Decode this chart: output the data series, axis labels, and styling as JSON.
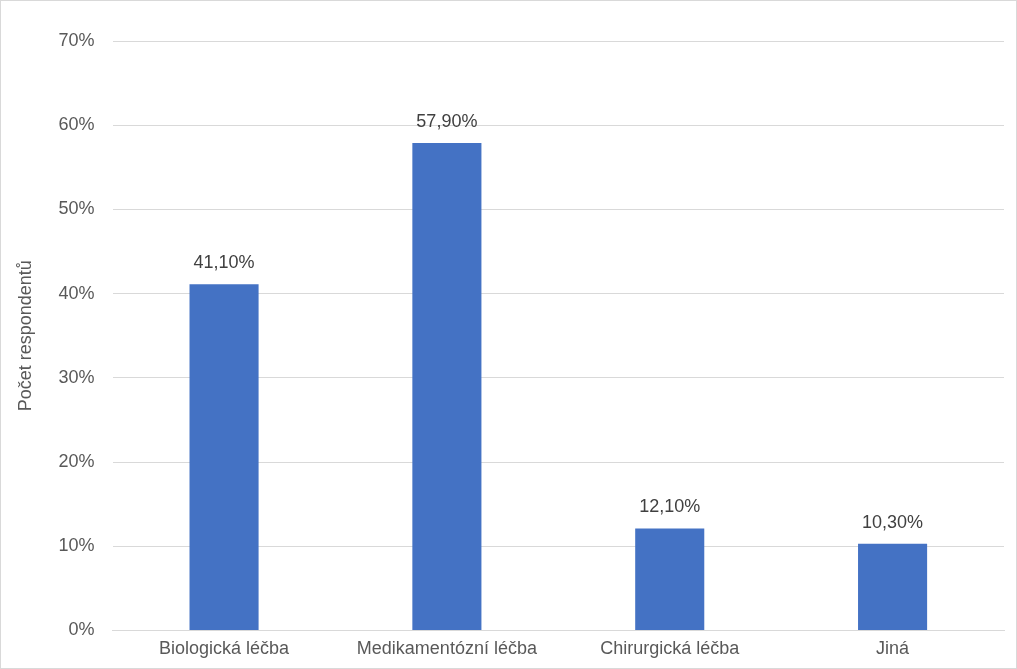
{
  "chart_data": {
    "type": "bar",
    "ylabel": "Počet respondentů",
    "categories": [
      "Biologická léčba",
      "Medikamentózní léčba",
      "Chirurgická léčba",
      "Jiná"
    ],
    "values": [
      41.1,
      57.9,
      12.1,
      10.3
    ],
    "value_labels": [
      "41,10%",
      "57,90%",
      "12,10%",
      "10,30%"
    ],
    "color": "#4472c4",
    "ylim": [
      0,
      70
    ],
    "yticks": [
      {
        "value": 0,
        "label": "0%"
      },
      {
        "value": 10,
        "label": "10%"
      },
      {
        "value": 20,
        "label": "20%"
      },
      {
        "value": 30,
        "label": "30%"
      },
      {
        "value": 40,
        "label": "40%"
      },
      {
        "value": 50,
        "label": "50%"
      },
      {
        "value": 60,
        "label": "60%"
      },
      {
        "value": 70,
        "label": "70%"
      }
    ],
    "grid": "y",
    "legend": false
  }
}
